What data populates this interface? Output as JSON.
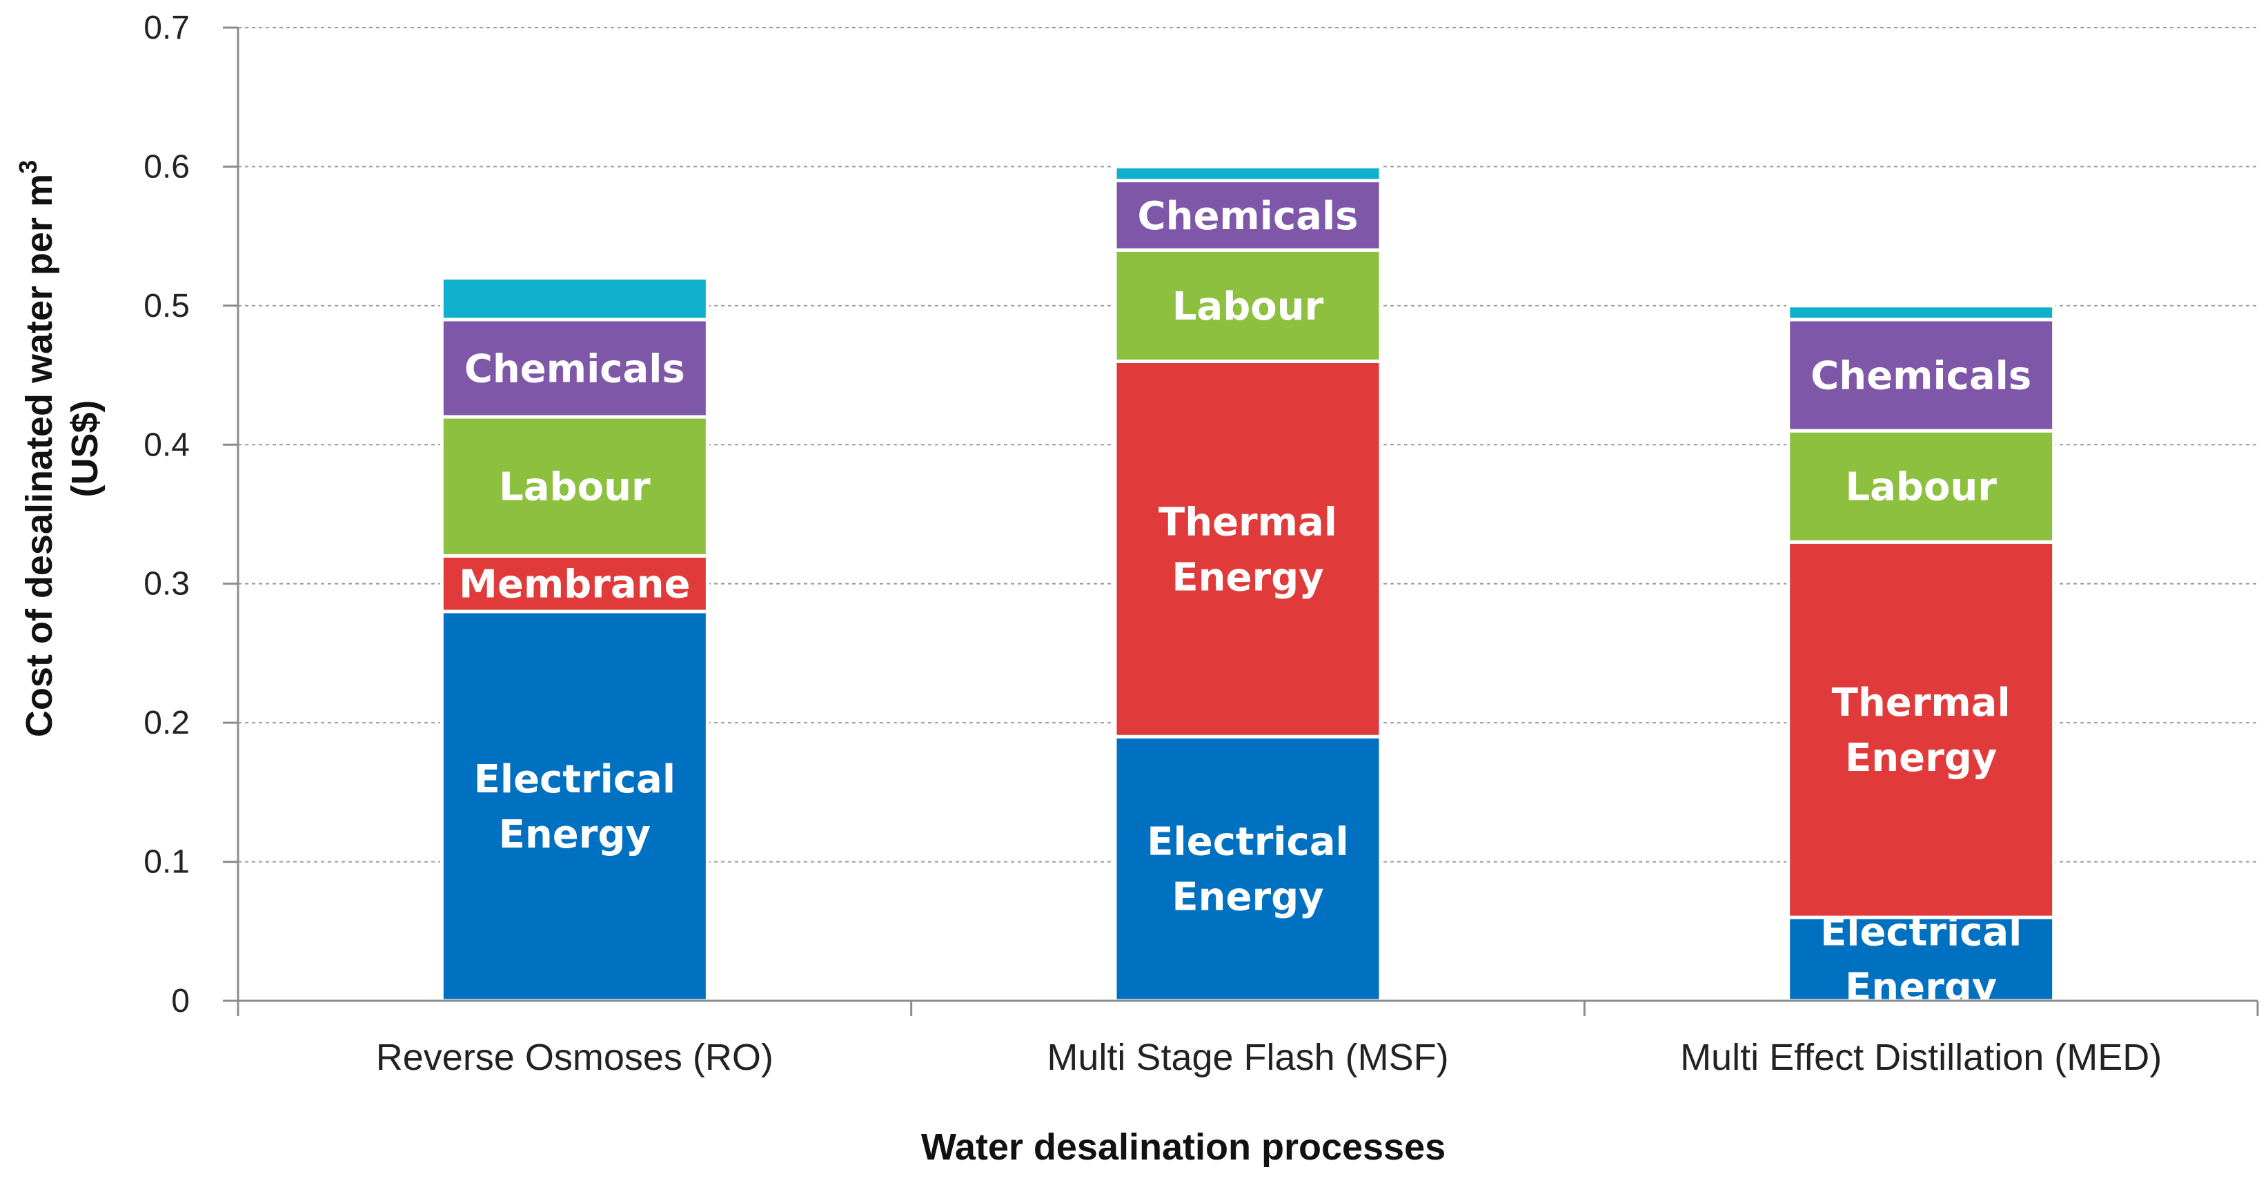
{
  "chart_data": {
    "type": "bar",
    "stacked": true,
    "categories": [
      "Reverse Osmoses (RO)",
      "Multi Stage Flash (MSF)",
      "Multi Effect Distillation (MED)"
    ],
    "ylim": [
      0,
      0.7
    ],
    "yticks": [
      "0",
      "0.1",
      "0.2",
      "0.3",
      "0.4",
      "0.5",
      "0.6",
      "0.7"
    ],
    "grid": true,
    "legend": "none",
    "xlabel": "Water desalination processes",
    "ylabel_line1": "Cost of desalinated water per m",
    "ylabel_sup": "3",
    "ylabel_line2": "(US$)",
    "bars": [
      {
        "category": "Reverse Osmoses (RO)",
        "segments": [
          {
            "label": [
              "Electrical",
              "Energy"
            ],
            "value": 0.28,
            "color": "#0070C0"
          },
          {
            "label": [
              "Membrane"
            ],
            "value": 0.04,
            "color": "#E03A3A"
          },
          {
            "label": [
              "Labour"
            ],
            "value": 0.1,
            "color": "#8DC03F"
          },
          {
            "label": [
              "Chemicals"
            ],
            "value": 0.07,
            "color": "#7E57A8"
          },
          {
            "label": [],
            "value": 0.03,
            "color": "#0FB0CC"
          }
        ]
      },
      {
        "category": "Multi Stage Flash (MSF)",
        "segments": [
          {
            "label": [
              "Electrical",
              "Energy"
            ],
            "value": 0.19,
            "color": "#0070C0"
          },
          {
            "label": [
              "Thermal",
              "Energy"
            ],
            "value": 0.27,
            "color": "#E03A3A"
          },
          {
            "label": [
              "Labour"
            ],
            "value": 0.08,
            "color": "#8DC03F"
          },
          {
            "label": [
              "Chemicals"
            ],
            "value": 0.05,
            "color": "#7E57A8"
          },
          {
            "label": [],
            "value": 0.01,
            "color": "#0FB0CC"
          }
        ]
      },
      {
        "category": "Multi Effect Distillation (MED)",
        "segments": [
          {
            "label": [
              "Electrical",
              "Energy"
            ],
            "value": 0.06,
            "color": "#0070C0"
          },
          {
            "label": [
              "Thermal",
              "Energy"
            ],
            "value": 0.27,
            "color": "#E03A3A"
          },
          {
            "label": [
              "Labour"
            ],
            "value": 0.08,
            "color": "#8DC03F"
          },
          {
            "label": [
              "Chemicals"
            ],
            "value": 0.08,
            "color": "#7E57A8"
          },
          {
            "label": [],
            "value": 0.01,
            "color": "#0FB0CC"
          }
        ]
      }
    ]
  }
}
